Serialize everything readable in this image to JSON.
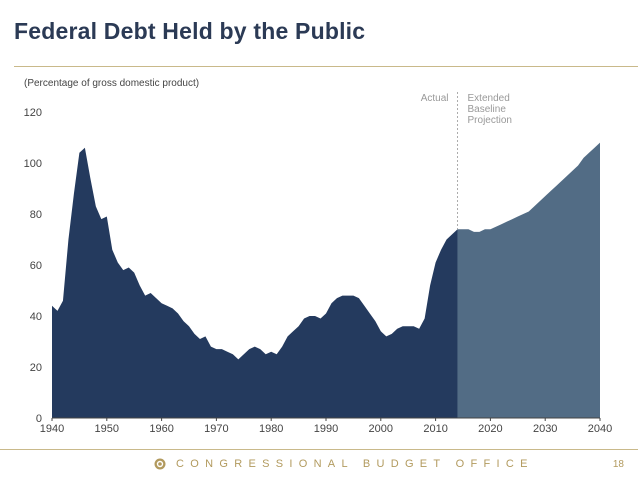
{
  "title": "Federal Debt Held by the Public",
  "footer": {
    "org": "CONGRESSIONAL BUDGET OFFICE",
    "page": "18"
  },
  "colors": {
    "actual": "#243a5e",
    "projection": "#526c85",
    "accent": "#b29a5e",
    "text": "#666666"
  },
  "chart_data": {
    "type": "area",
    "title": "Federal Debt Held by the Public",
    "subtitle": "(Percentage of gross domestic product)",
    "xlabel": "",
    "ylabel": "",
    "xlim": [
      1940,
      2040
    ],
    "ylim": [
      0,
      120
    ],
    "xticks": [
      1940,
      1950,
      1960,
      1970,
      1980,
      1990,
      2000,
      2010,
      2020,
      2030,
      2040
    ],
    "yticks": [
      0,
      20,
      40,
      60,
      80,
      100,
      120
    ],
    "divider_year": 2014,
    "annotations": {
      "actual": "Actual",
      "projection": [
        "Extended",
        "Baseline",
        "Projection"
      ]
    },
    "series": [
      {
        "name": "Actual",
        "points": [
          [
            1940,
            44
          ],
          [
            1941,
            42
          ],
          [
            1942,
            46
          ],
          [
            1943,
            70
          ],
          [
            1944,
            88
          ],
          [
            1945,
            104
          ],
          [
            1946,
            106
          ],
          [
            1947,
            94
          ],
          [
            1948,
            83
          ],
          [
            1949,
            78
          ],
          [
            1950,
            79
          ],
          [
            1951,
            66
          ],
          [
            1952,
            61
          ],
          [
            1953,
            58
          ],
          [
            1954,
            59
          ],
          [
            1955,
            57
          ],
          [
            1956,
            52
          ],
          [
            1957,
            48
          ],
          [
            1958,
            49
          ],
          [
            1959,
            47
          ],
          [
            1960,
            45
          ],
          [
            1961,
            44
          ],
          [
            1962,
            43
          ],
          [
            1963,
            41
          ],
          [
            1964,
            38
          ],
          [
            1965,
            36
          ],
          [
            1966,
            33
          ],
          [
            1967,
            31
          ],
          [
            1968,
            32
          ],
          [
            1969,
            28
          ],
          [
            1970,
            27
          ],
          [
            1971,
            27
          ],
          [
            1972,
            26
          ],
          [
            1973,
            25
          ],
          [
            1974,
            23
          ],
          [
            1975,
            25
          ],
          [
            1976,
            27
          ],
          [
            1977,
            28
          ],
          [
            1978,
            27
          ],
          [
            1979,
            25
          ],
          [
            1980,
            26
          ],
          [
            1981,
            25
          ],
          [
            1982,
            28
          ],
          [
            1983,
            32
          ],
          [
            1984,
            34
          ],
          [
            1985,
            36
          ],
          [
            1986,
            39
          ],
          [
            1987,
            40
          ],
          [
            1988,
            40
          ],
          [
            1989,
            39
          ],
          [
            1990,
            41
          ],
          [
            1991,
            45
          ],
          [
            1992,
            47
          ],
          [
            1993,
            48
          ],
          [
            1994,
            48
          ],
          [
            1995,
            48
          ],
          [
            1996,
            47
          ],
          [
            1997,
            44
          ],
          [
            1998,
            41
          ],
          [
            1999,
            38
          ],
          [
            2000,
            34
          ],
          [
            2001,
            32
          ],
          [
            2002,
            33
          ],
          [
            2003,
            35
          ],
          [
            2004,
            36
          ],
          [
            2005,
            36
          ],
          [
            2006,
            36
          ],
          [
            2007,
            35
          ],
          [
            2008,
            39
          ],
          [
            2009,
            52
          ],
          [
            2010,
            61
          ],
          [
            2011,
            66
          ],
          [
            2012,
            70
          ],
          [
            2013,
            72
          ],
          [
            2014,
            74
          ]
        ]
      },
      {
        "name": "Extended Baseline Projection",
        "points": [
          [
            2014,
            74
          ],
          [
            2015,
            74
          ],
          [
            2016,
            74
          ],
          [
            2017,
            73
          ],
          [
            2018,
            73
          ],
          [
            2019,
            74
          ],
          [
            2020,
            74
          ],
          [
            2021,
            75
          ],
          [
            2022,
            76
          ],
          [
            2023,
            77
          ],
          [
            2024,
            78
          ],
          [
            2025,
            79
          ],
          [
            2026,
            80
          ],
          [
            2027,
            81
          ],
          [
            2028,
            83
          ],
          [
            2029,
            85
          ],
          [
            2030,
            87
          ],
          [
            2031,
            89
          ],
          [
            2032,
            91
          ],
          [
            2033,
            93
          ],
          [
            2034,
            95
          ],
          [
            2035,
            97
          ],
          [
            2036,
            99
          ],
          [
            2037,
            102
          ],
          [
            2038,
            104
          ],
          [
            2039,
            106
          ],
          [
            2040,
            108
          ]
        ]
      }
    ]
  }
}
